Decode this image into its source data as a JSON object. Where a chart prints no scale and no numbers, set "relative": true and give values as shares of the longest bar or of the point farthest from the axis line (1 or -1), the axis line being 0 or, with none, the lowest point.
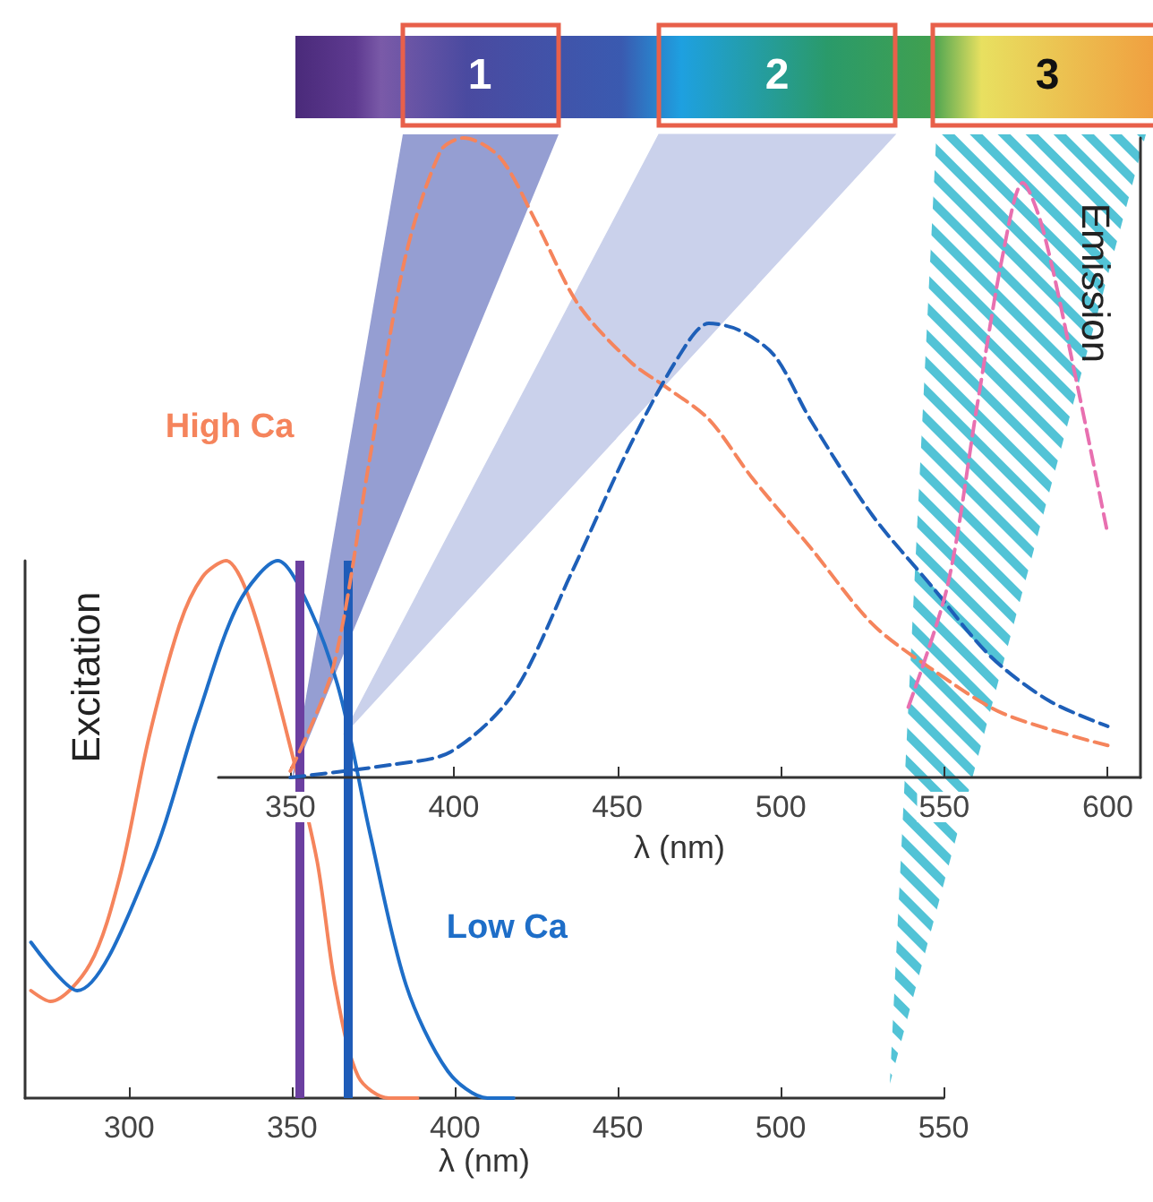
{
  "chart_data": [
    {
      "type": "line",
      "xlabel": "λ (nm)",
      "ylabel": "Excitation",
      "xlim": [
        268,
        550
      ],
      "xticks": [
        300,
        350,
        400,
        450,
        500,
        550
      ],
      "relative": true,
      "legend": false,
      "grid": false,
      "marker": "none",
      "line_style": "solid",
      "ref_lines": [
        {
          "axis": "x",
          "value": 352,
          "color": "#6b3fa0"
        },
        {
          "axis": "x",
          "value": 367,
          "color": "#1f5cb8"
        }
      ],
      "series": [
        {
          "name": "High Ca",
          "color": "#f5845c",
          "x": [
            269.8,
            275.8,
            288,
            297,
            306,
            315.4,
            322.5,
            329.7,
            337.4,
            350,
            357.7,
            363.2,
            370.3,
            379.7,
            388.5
          ],
          "values": [
            0.2,
            0.18,
            0.25,
            0.41,
            0.67,
            0.88,
            0.97,
            1.0,
            0.92,
            0.64,
            0.44,
            0.21,
            0.04,
            0.0,
            0.0
          ]
        },
        {
          "name": "Low Ca",
          "color": "#1e6ec8",
          "x": [
            269.8,
            284,
            306,
            321,
            333.5,
            345.6,
            355.5,
            364.8,
            374,
            385,
            397.8,
            410,
            418
          ],
          "values": [
            0.29,
            0.2,
            0.43,
            0.71,
            0.92,
            1.0,
            0.91,
            0.75,
            0.49,
            0.21,
            0.05,
            0.0,
            0.0
          ]
        }
      ]
    },
    {
      "type": "line",
      "xlabel": "λ (nm)",
      "ylabel": "Emission",
      "xlim": [
        328,
        610
      ],
      "xticks": [
        350,
        400,
        450,
        500,
        550,
        600
      ],
      "relative": true,
      "legend": false,
      "grid": false,
      "marker": "none",
      "line_style": "dashed",
      "annotations": [
        "1",
        "2",
        "3"
      ],
      "series": [
        {
          "color": "#f5845c",
          "x": [
            350,
            363,
            374,
            385,
            396,
            403,
            414,
            425,
            438,
            454,
            465,
            478,
            491,
            509,
            528,
            546,
            568,
            600
          ],
          "values": [
            0.01,
            0.17,
            0.49,
            0.81,
            0.98,
            1.0,
            0.97,
            0.87,
            0.74,
            0.65,
            0.61,
            0.56,
            0.47,
            0.36,
            0.24,
            0.17,
            0.1,
            0.05
          ]
        },
        {
          "color": "#1e5fb8",
          "x": [
            350,
            381,
            399,
            418,
            436,
            454,
            469,
            478,
            487,
            498,
            509,
            528,
            546,
            564,
            582,
            600
          ],
          "values": [
            0.0,
            0.02,
            0.04,
            0.13,
            0.32,
            0.52,
            0.66,
            0.71,
            0.7,
            0.66,
            0.56,
            0.41,
            0.3,
            0.19,
            0.12,
            0.08
          ]
        },
        {
          "color": "#e870b0",
          "x": [
            539,
            551,
            560,
            568,
            574,
            580,
            590,
            600
          ],
          "values": [
            0.11,
            0.3,
            0.58,
            0.82,
            0.93,
            0.86,
            0.63,
            0.38
          ]
        }
      ]
    }
  ]
}
